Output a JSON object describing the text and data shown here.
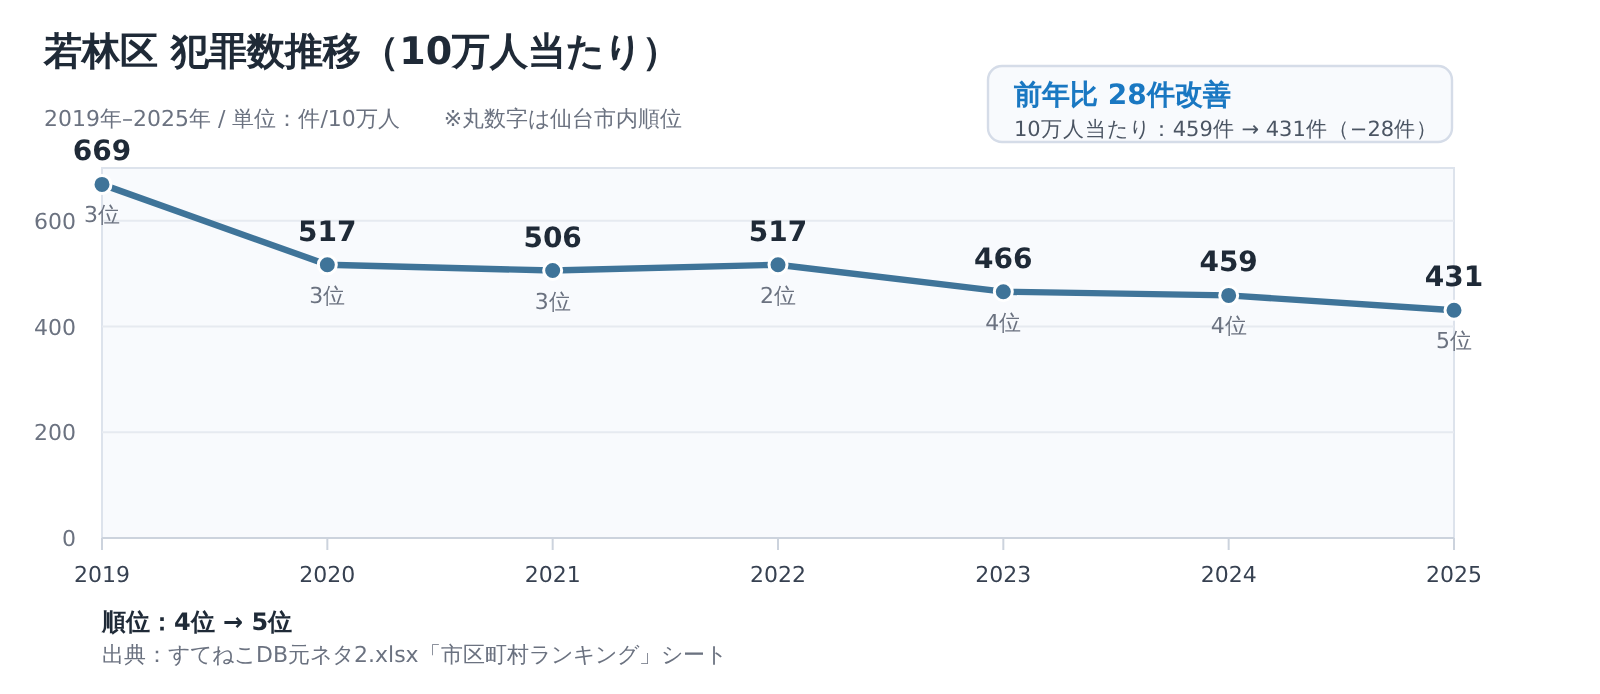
{
  "chart_data": {
    "type": "line",
    "title": "若林区  犯罪数推移（10万人当たり）",
    "subtitle": "2019年–2025年 / 単位：件/10万人　　※丸数字は仙台市内順位",
    "categories": [
      "2019",
      "2020",
      "2021",
      "2022",
      "2023",
      "2024",
      "2025"
    ],
    "series": [
      {
        "color": "#3f7499",
        "values": [
          669,
          517,
          506,
          517,
          466,
          459,
          431
        ]
      }
    ],
    "ylim": [
      0,
      700
    ],
    "yticks": [
      0,
      200,
      400,
      600
    ],
    "grid": "y",
    "marker": "circle",
    "line_style": "solid",
    "data_labels": true,
    "annotations": [
      {
        "text": "3位",
        "x": "2019",
        "y": 669
      },
      {
        "text": "3位",
        "x": "2020",
        "y": 517
      },
      {
        "text": "3位",
        "x": "2021",
        "y": 506
      },
      {
        "text": "2位",
        "x": "2022",
        "y": 517
      },
      {
        "text": "4位",
        "x": "2023",
        "y": 466
      },
      {
        "text": "4位",
        "x": "2024",
        "y": 459
      },
      {
        "text": "5位",
        "x": "2025",
        "y": 431
      },
      "前年比  28件改善",
      "10万人当たり：459件 → 431件（−28件）",
      "順位：4位 → 5位",
      "出典：すてねこDB元ネタ2.xlsx「市区町村ランキング」シート"
    ]
  }
}
